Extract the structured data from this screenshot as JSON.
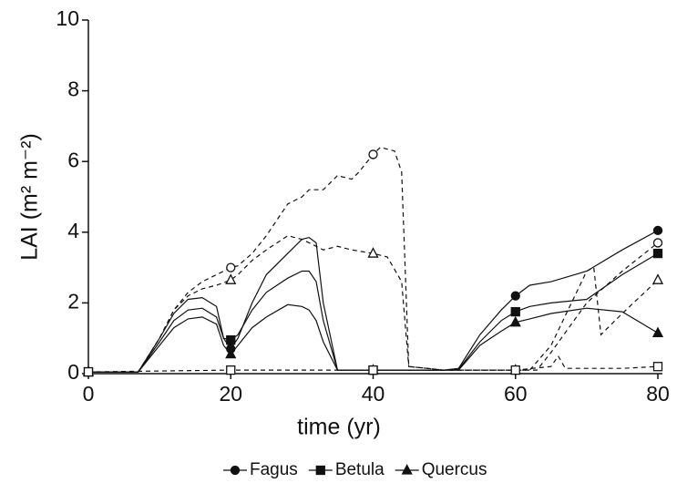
{
  "chart_data": {
    "type": "line",
    "x_label": "time (yr)",
    "y_label": "LAI (m² m⁻²)",
    "xlim": [
      0,
      80
    ],
    "xticks": [
      0,
      20,
      40,
      60,
      80
    ],
    "ylim": [
      0,
      10
    ],
    "yticks": [
      0,
      2,
      4,
      6,
      8,
      10
    ],
    "grid": false,
    "legend": "bottom",
    "series": [
      {
        "name": "Fagus",
        "color": "#111111",
        "marker": "circle",
        "filled": true,
        "dash": false,
        "x": [
          0,
          7,
          10,
          12,
          14,
          16,
          18,
          19,
          20,
          21,
          23,
          25,
          28,
          30,
          31,
          32,
          33,
          35,
          40,
          45,
          50,
          52,
          55,
          58,
          60,
          62,
          65,
          70,
          75,
          80
        ],
        "values": [
          0.05,
          0.05,
          1.0,
          1.7,
          2.1,
          2.15,
          1.9,
          1.0,
          0.7,
          1.0,
          2.0,
          2.8,
          3.4,
          3.8,
          3.85,
          3.7,
          2.0,
          0.1,
          0.1,
          0.1,
          0.1,
          0.15,
          1.1,
          1.8,
          2.2,
          2.5,
          2.6,
          2.9,
          3.5,
          4.05
        ]
      },
      {
        "name": "Betula",
        "color": "#111111",
        "marker": "square",
        "filled": true,
        "dash": false,
        "x": [
          0,
          7,
          10,
          12,
          14,
          16,
          18,
          19,
          20,
          21,
          23,
          25,
          28,
          30,
          31,
          32,
          33,
          35,
          40,
          45,
          50,
          52,
          55,
          58,
          60,
          62,
          65,
          70,
          75,
          80
        ],
        "values": [
          0.05,
          0.05,
          0.9,
          1.5,
          1.8,
          1.85,
          1.6,
          1.0,
          0.95,
          1.1,
          1.8,
          2.3,
          2.7,
          2.9,
          2.9,
          2.6,
          1.5,
          0.1,
          0.1,
          0.1,
          0.1,
          0.12,
          0.9,
          1.5,
          1.75,
          1.9,
          2.0,
          2.1,
          2.8,
          3.4
        ]
      },
      {
        "name": "Quercus",
        "color": "#111111",
        "marker": "triangle",
        "filled": true,
        "dash": false,
        "x": [
          0,
          7,
          10,
          12,
          14,
          16,
          18,
          19,
          20,
          21,
          23,
          25,
          28,
          30,
          31,
          32,
          33,
          35,
          40,
          45,
          50,
          52,
          55,
          58,
          60,
          62,
          65,
          70,
          75,
          80
        ],
        "values": [
          0.05,
          0.05,
          0.8,
          1.3,
          1.55,
          1.6,
          1.4,
          0.8,
          0.55,
          0.8,
          1.3,
          1.6,
          1.95,
          1.9,
          1.8,
          1.5,
          0.9,
          0.1,
          0.1,
          0.1,
          0.1,
          0.1,
          0.8,
          1.2,
          1.45,
          1.55,
          1.7,
          1.85,
          1.75,
          1.15
        ]
      },
      {
        "color": "#111111",
        "marker": "circle",
        "filled": false,
        "dash": true,
        "x": [
          0,
          7,
          10,
          12,
          14,
          16,
          18,
          20,
          21,
          23,
          25,
          28,
          30,
          31,
          33,
          35,
          37,
          38,
          40,
          41,
          43,
          44,
          45,
          50,
          55,
          60,
          63,
          65,
          70,
          75,
          80
        ],
        "values": [
          0.05,
          0.05,
          1.0,
          1.8,
          2.3,
          2.6,
          2.8,
          3.0,
          3.05,
          3.4,
          3.9,
          4.8,
          5.0,
          5.2,
          5.2,
          5.6,
          5.5,
          5.7,
          6.2,
          6.4,
          6.3,
          5.7,
          0.2,
          0.1,
          0.1,
          0.1,
          0.1,
          0.6,
          2.0,
          2.9,
          3.7
        ]
      },
      {
        "color": "#111111",
        "marker": "triangle",
        "filled": false,
        "dash": true,
        "x": [
          0,
          7,
          10,
          12,
          14,
          16,
          18,
          20,
          21,
          23,
          25,
          28,
          30,
          31,
          33,
          35,
          37,
          40,
          42,
          44,
          45,
          50,
          55,
          60,
          62,
          65,
          70,
          71,
          72,
          75,
          80
        ],
        "values": [
          0.05,
          0.05,
          1.0,
          1.8,
          2.2,
          2.4,
          2.5,
          2.65,
          2.8,
          3.2,
          3.5,
          3.9,
          3.8,
          3.7,
          3.5,
          3.6,
          3.5,
          3.4,
          3.3,
          2.6,
          0.2,
          0.1,
          0.1,
          0.1,
          0.1,
          0.8,
          2.9,
          3.0,
          1.1,
          1.7,
          2.65
        ]
      },
      {
        "color": "#111111",
        "marker": "square",
        "filled": false,
        "dash": true,
        "x": [
          0,
          20,
          40,
          60,
          65,
          66,
          67,
          75,
          80
        ],
        "values": [
          0.05,
          0.1,
          0.1,
          0.1,
          0.2,
          0.5,
          0.15,
          0.15,
          0.2
        ]
      }
    ]
  }
}
